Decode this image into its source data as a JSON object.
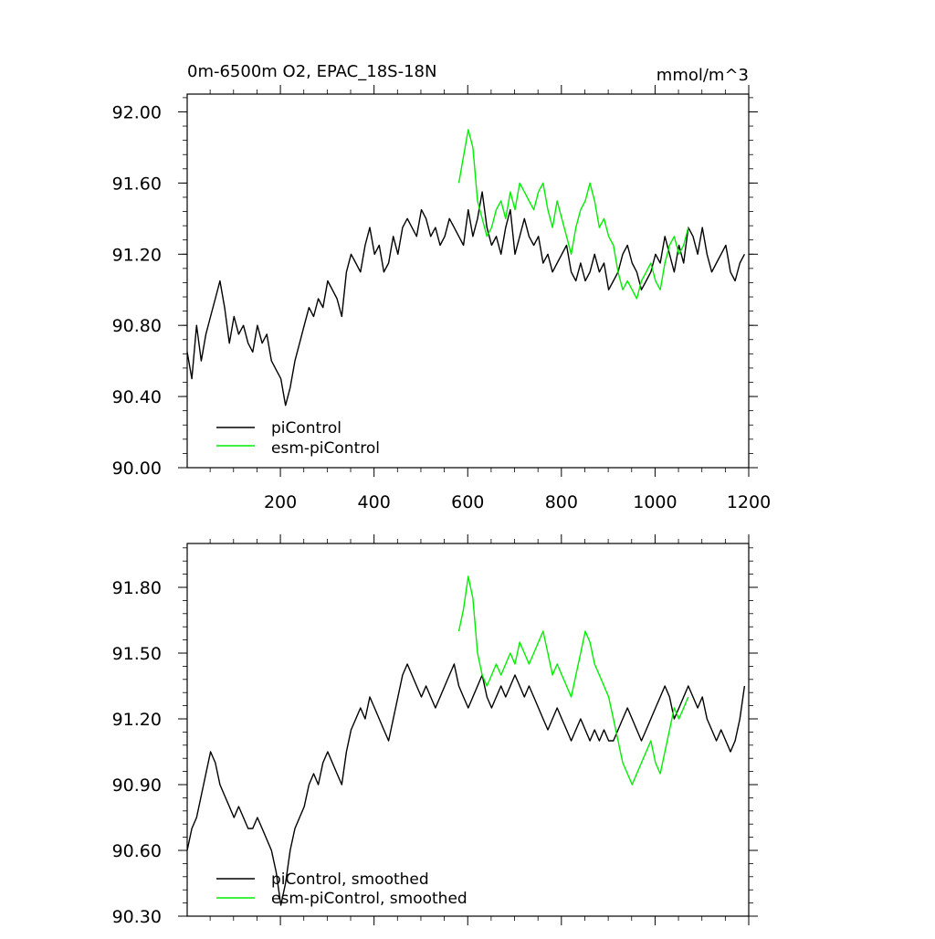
{
  "chart_data": [
    {
      "type": "line",
      "title": "0m-6500m O2, EPAC_18S-18N",
      "units": "mmol/m^3",
      "xlabel": "",
      "ylabel": "",
      "xlim": [
        1,
        1200
      ],
      "ylim": [
        90.0,
        92.1
      ],
      "x_ticks": [
        200,
        400,
        600,
        800,
        1000,
        1200
      ],
      "x_tick_labels": [
        "200",
        "400",
        "600",
        "800",
        "1000",
        "1200"
      ],
      "y_ticks": [
        90.0,
        90.4,
        90.8,
        91.2,
        91.6,
        92.0
      ],
      "y_tick_labels": [
        "90.00",
        "90.40",
        "90.80",
        "91.20",
        "91.60",
        "92.00"
      ],
      "legend": "bottom-left",
      "series": [
        {
          "name": "piControl",
          "color": "#000000",
          "x_start": 1,
          "x_step": 10,
          "values": [
            90.65,
            90.5,
            90.8,
            90.6,
            90.75,
            90.85,
            90.95,
            91.05,
            90.9,
            90.7,
            90.85,
            90.75,
            90.8,
            90.7,
            90.65,
            90.8,
            90.7,
            90.75,
            90.6,
            90.55,
            90.5,
            90.35,
            90.45,
            90.6,
            90.7,
            90.8,
            90.9,
            90.85,
            90.95,
            90.9,
            91.05,
            91.0,
            90.95,
            90.85,
            91.1,
            91.2,
            91.15,
            91.1,
            91.25,
            91.35,
            91.2,
            91.25,
            91.1,
            91.15,
            91.3,
            91.2,
            91.35,
            91.4,
            91.35,
            91.3,
            91.45,
            91.4,
            91.3,
            91.35,
            91.25,
            91.3,
            91.4,
            91.35,
            91.3,
            91.25,
            91.45,
            91.3,
            91.4,
            91.55,
            91.35,
            91.25,
            91.3,
            91.2,
            91.35,
            91.45,
            91.2,
            91.3,
            91.4,
            91.3,
            91.25,
            91.3,
            91.15,
            91.2,
            91.1,
            91.15,
            91.2,
            91.25,
            91.1,
            91.05,
            91.15,
            91.05,
            91.1,
            91.2,
            91.1,
            91.15,
            91.0,
            91.05,
            91.1,
            91.2,
            91.25,
            91.15,
            91.1,
            91.0,
            91.05,
            91.1,
            91.2,
            91.15,
            91.3,
            91.2,
            91.1,
            91.25,
            91.15,
            91.35,
            91.3,
            91.2,
            91.35,
            91.2,
            91.1,
            91.15,
            91.2,
            91.25,
            91.1,
            91.05,
            91.15,
            91.2
          ]
        },
        {
          "name": "esm-piControl",
          "color": "#00ee00",
          "x_start": 581,
          "x_step": 10,
          "values": [
            91.6,
            91.75,
            91.9,
            91.8,
            91.5,
            91.4,
            91.3,
            91.35,
            91.45,
            91.5,
            91.4,
            91.55,
            91.45,
            91.6,
            91.55,
            91.5,
            91.45,
            91.55,
            91.6,
            91.45,
            91.35,
            91.5,
            91.4,
            91.3,
            91.2,
            91.35,
            91.45,
            91.5,
            91.6,
            91.5,
            91.35,
            91.4,
            91.3,
            91.25,
            91.1,
            91.0,
            91.05,
            91.0,
            90.95,
            91.05,
            91.1,
            91.15,
            91.05,
            91.0,
            91.15,
            91.25,
            91.3,
            91.2,
            91.25,
            91.35
          ]
        }
      ]
    },
    {
      "type": "line",
      "title": "",
      "xlabel": "",
      "ylabel": "",
      "xlim": [
        1,
        1200
      ],
      "ylim": [
        90.3,
        92.0
      ],
      "x_ticks": [
        200,
        400,
        600,
        800,
        1000,
        1200
      ],
      "x_tick_labels": [],
      "y_ticks": [
        90.3,
        90.6,
        90.9,
        91.2,
        91.5,
        91.8
      ],
      "y_tick_labels": [
        "90.30",
        "90.60",
        "90.90",
        "91.20",
        "91.50",
        "91.80"
      ],
      "legend": "bottom-left",
      "series": [
        {
          "name": "piControl, smoothed",
          "color": "#000000",
          "x_start": 1,
          "x_step": 10,
          "values": [
            90.6,
            90.7,
            90.75,
            90.85,
            90.95,
            91.05,
            91.0,
            90.9,
            90.85,
            90.8,
            90.75,
            90.8,
            90.75,
            90.7,
            90.7,
            90.75,
            90.7,
            90.65,
            90.6,
            90.5,
            90.35,
            90.45,
            90.6,
            90.7,
            90.75,
            90.8,
            90.9,
            90.95,
            90.9,
            91.0,
            91.05,
            91.0,
            90.95,
            90.9,
            91.05,
            91.15,
            91.2,
            91.25,
            91.2,
            91.3,
            91.25,
            91.2,
            91.15,
            91.1,
            91.2,
            91.3,
            91.4,
            91.45,
            91.4,
            91.35,
            91.3,
            91.35,
            91.3,
            91.25,
            91.3,
            91.35,
            91.4,
            91.45,
            91.35,
            91.3,
            91.25,
            91.3,
            91.35,
            91.4,
            91.3,
            91.25,
            91.3,
            91.35,
            91.3,
            91.35,
            91.4,
            91.35,
            91.3,
            91.35,
            91.3,
            91.25,
            91.2,
            91.15,
            91.2,
            91.25,
            91.2,
            91.15,
            91.1,
            91.15,
            91.2,
            91.15,
            91.1,
            91.15,
            91.1,
            91.15,
            91.1,
            91.1,
            91.15,
            91.2,
            91.25,
            91.2,
            91.15,
            91.1,
            91.15,
            91.2,
            91.25,
            91.3,
            91.35,
            91.3,
            91.2,
            91.25,
            91.3,
            91.35,
            91.3,
            91.25,
            91.3,
            91.2,
            91.15,
            91.1,
            91.15,
            91.1,
            91.05,
            91.1,
            91.2,
            91.35
          ]
        },
        {
          "name": "esm-piControl, smoothed",
          "color": "#00ee00",
          "x_start": 581,
          "x_step": 10,
          "values": [
            91.6,
            91.7,
            91.85,
            91.75,
            91.5,
            91.4,
            91.35,
            91.4,
            91.45,
            91.4,
            91.45,
            91.5,
            91.45,
            91.55,
            91.5,
            91.45,
            91.5,
            91.55,
            91.6,
            91.5,
            91.4,
            91.45,
            91.4,
            91.35,
            91.3,
            91.4,
            91.5,
            91.6,
            91.55,
            91.45,
            91.4,
            91.35,
            91.3,
            91.2,
            91.1,
            91.0,
            90.95,
            90.9,
            90.95,
            91.0,
            91.05,
            91.1,
            91.0,
            90.95,
            91.05,
            91.15,
            91.25,
            91.2,
            91.25,
            91.3
          ]
        }
      ]
    }
  ]
}
